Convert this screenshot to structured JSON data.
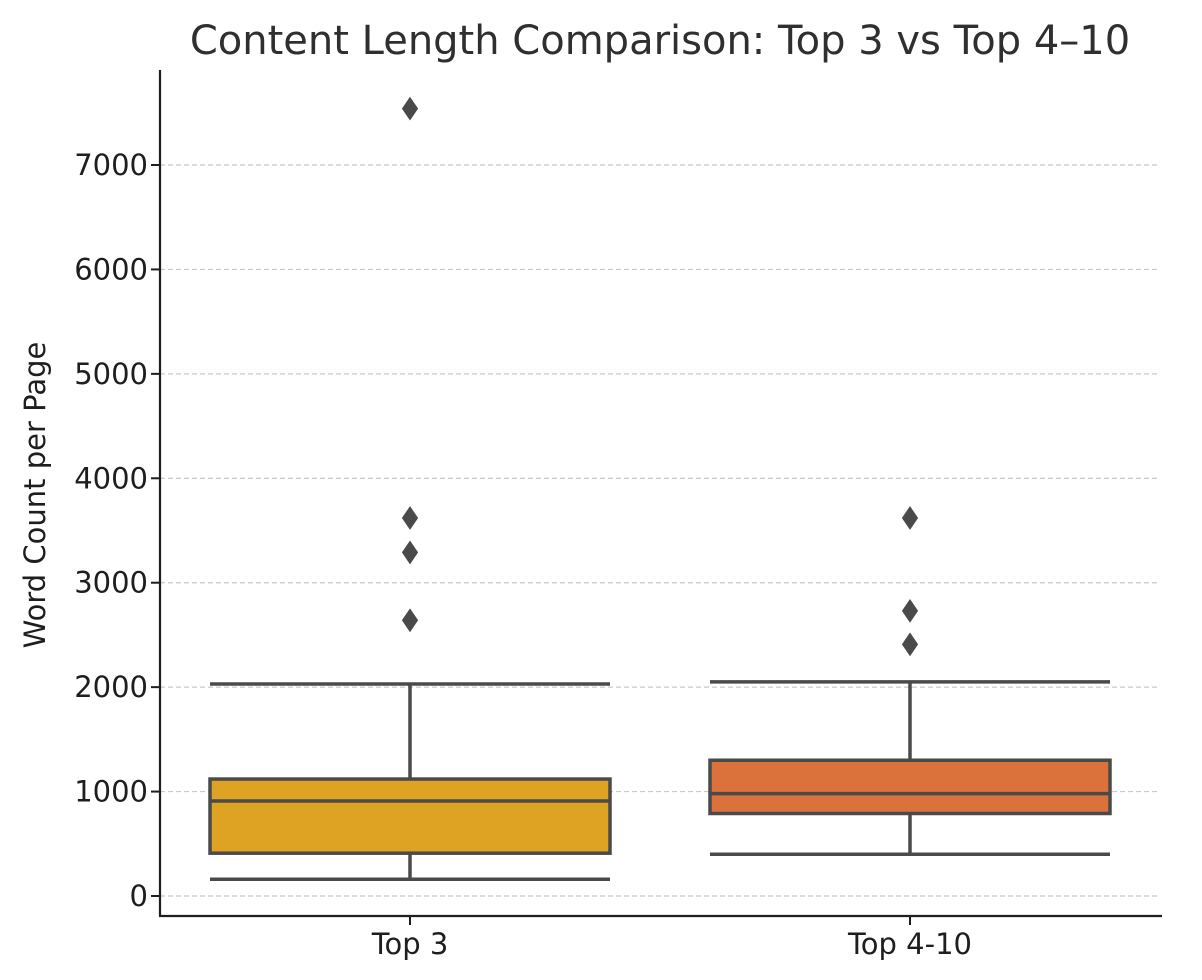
{
  "chart_data": {
    "type": "box",
    "title": "Content Length Comparison: Top 3 vs Top 4–10",
    "xlabel": "",
    "ylabel": "Word Count per Page",
    "ylim": [
      -200,
      7900
    ],
    "yticks": [
      0,
      1000,
      2000,
      3000,
      4000,
      5000,
      6000,
      7000
    ],
    "ytick_labels": [
      "0",
      "1000",
      "2000",
      "3000",
      "4000",
      "5000",
      "6000",
      "7000"
    ],
    "grid": "y, dashed",
    "categories": [
      "Top 3",
      "Top 4-10"
    ],
    "boxes": [
      {
        "category": "Top 3",
        "color": "#dfa324",
        "whisker_low": 160,
        "q1": 410,
        "median": 910,
        "q3": 1120,
        "whisker_high": 2030,
        "outliers": [
          2640,
          3290,
          3620,
          7540
        ]
      },
      {
        "category": "Top 4-10",
        "color": "#dc723b",
        "whisker_low": 400,
        "q1": 790,
        "median": 980,
        "q3": 1300,
        "whisker_high": 2050,
        "outliers": [
          2410,
          2730,
          3620
        ]
      }
    ]
  }
}
